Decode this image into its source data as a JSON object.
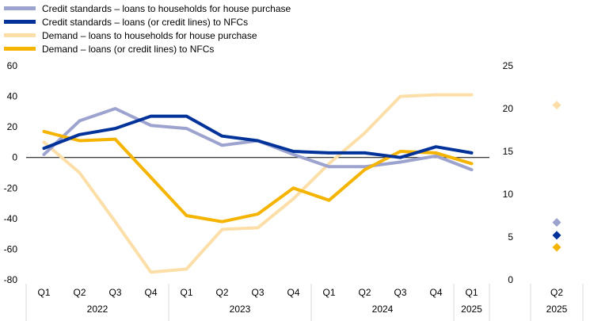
{
  "chart_data": [
    {
      "type": "line",
      "categories": [
        "Q1",
        "Q2",
        "Q3",
        "Q4",
        "Q1",
        "Q2",
        "Q3",
        "Q4",
        "Q1",
        "Q2",
        "Q3",
        "Q4",
        "Q1"
      ],
      "year_groups": [
        {
          "label": "2022",
          "span": 4
        },
        {
          "label": "2023",
          "span": 4
        },
        {
          "label": "2024",
          "span": 4
        },
        {
          "label": "2025",
          "span": 1
        }
      ],
      "ylim": [
        -80,
        60
      ],
      "yticks": [
        -80,
        -60,
        -40,
        -20,
        0,
        20,
        40,
        60
      ],
      "grid": false,
      "legend": "top-left",
      "series": [
        {
          "name": "Credit standards – loans to households for house purchase",
          "color": "#9da3cf",
          "values": [
            2,
            24,
            32,
            21,
            19,
            8,
            11,
            2,
            -6,
            -6,
            -3,
            1,
            -8
          ]
        },
        {
          "name": "Credit standards – loans (or credit lines) to NFCs",
          "color": "#003299",
          "values": [
            6,
            15,
            19,
            27,
            27,
            14,
            11,
            4,
            3,
            3,
            0,
            7,
            3
          ]
        },
        {
          "name": "Demand – loans to households for house purchase",
          "color": "#fcdfa8",
          "values": [
            10,
            -10,
            -42,
            -75,
            -73,
            -47,
            -46,
            -27,
            -4,
            16,
            40,
            41,
            41
          ]
        },
        {
          "name": "Demand – loans (or credit lines) to NFCs",
          "color": "#f5b400",
          "values": [
            17,
            11,
            12,
            -13,
            -38,
            -42,
            -37,
            -20,
            -28,
            -8,
            4,
            3,
            -4
          ]
        }
      ]
    },
    {
      "type": "scatter",
      "categories": [
        "Q2"
      ],
      "year_groups": [
        {
          "label": "2025",
          "span": 1
        }
      ],
      "ylim": [
        0,
        25
      ],
      "yticks": [
        0,
        5,
        10,
        15,
        20,
        25
      ],
      "series": [
        {
          "color": "#fcdfa8",
          "values": [
            20.4
          ]
        },
        {
          "color": "#9da3cf",
          "values": [
            6.7
          ]
        },
        {
          "color": "#003299",
          "values": [
            5.2
          ]
        },
        {
          "color": "#f5b400",
          "values": [
            3.8
          ]
        }
      ]
    }
  ]
}
